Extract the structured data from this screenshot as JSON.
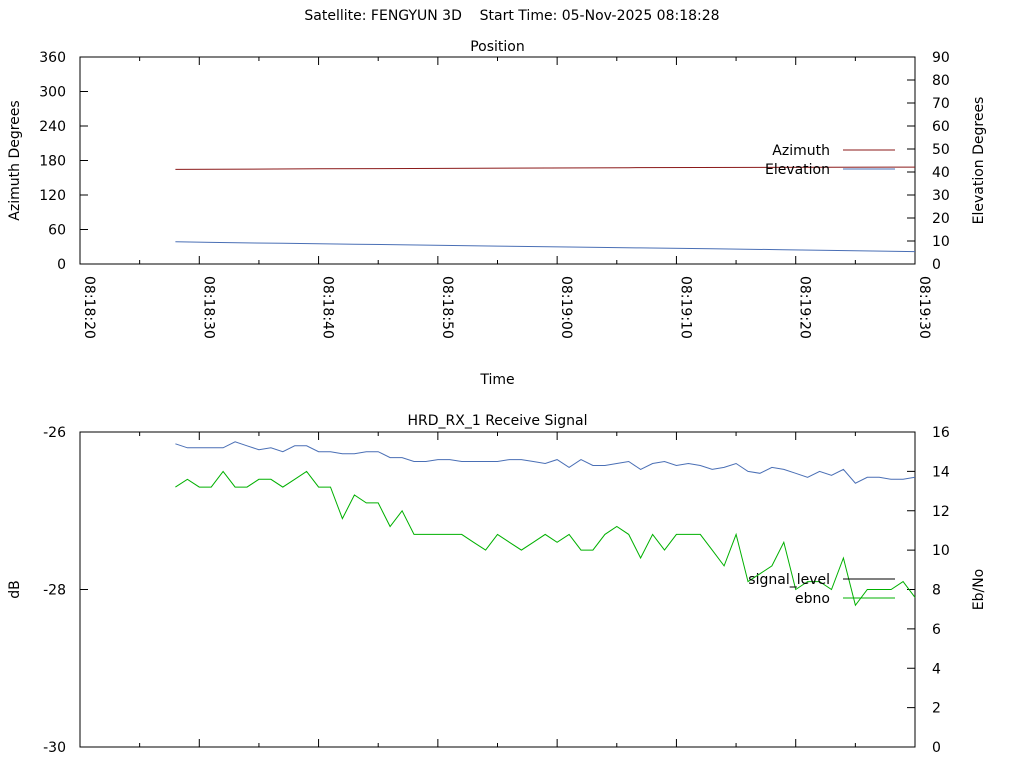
{
  "header": {
    "title": "Satellite: FENGYUN 3D    Start Time: 05-Nov-2025 08:18:28"
  },
  "chart_data": [
    {
      "type": "line",
      "title": "Position",
      "xlabel": "Time",
      "ylabel": "Azimuth Degrees",
      "y2label": "Elevation Degrees",
      "xlim": [
        "08:18:20",
        "08:19:30"
      ],
      "ylim": [
        0,
        360
      ],
      "y2lim": [
        0,
        90
      ],
      "x_ticks": [
        "08:18:20",
        "08:18:30",
        "08:18:40",
        "08:18:50",
        "08:19:00",
        "08:19:10",
        "08:19:20",
        "08:19:30"
      ],
      "y_ticks": [
        0,
        60,
        120,
        180,
        240,
        300,
        360
      ],
      "y2_ticks": [
        0,
        10,
        20,
        30,
        40,
        50,
        60,
        70,
        80,
        90
      ],
      "legend_position": "right",
      "grid": false,
      "series": [
        {
          "name": "Azimuth",
          "axis": "y",
          "color": "#8b1a1a",
          "x": [
            "08:18:28",
            "08:18:40",
            "08:19:06",
            "08:19:30"
          ],
          "y": [
            164.5,
            165.5,
            167.5,
            168.5
          ]
        },
        {
          "name": "Elevation",
          "axis": "y2",
          "color": "#4a6fb5",
          "x": [
            "08:18:28",
            "08:18:31",
            "08:18:37",
            "08:18:43",
            "08:18:49",
            "08:18:55",
            "08:19:01",
            "08:19:07",
            "08:19:13",
            "08:19:19",
            "08:19:25",
            "08:19:30"
          ],
          "y": [
            9.7,
            9.4,
            9.0,
            8.6,
            8.2,
            7.8,
            7.4,
            7.0,
            6.6,
            6.2,
            5.8,
            5.4
          ]
        }
      ]
    },
    {
      "type": "line",
      "title": "HRD_RX_1 Receive Signal",
      "xlabel": "",
      "ylabel": "dB",
      "y2label": "Eb/No",
      "xlim": [
        "08:18:20",
        "08:19:30"
      ],
      "ylim": [
        -30,
        -26
      ],
      "y2lim": [
        0,
        16
      ],
      "y_ticks": [
        -30,
        -28,
        -26
      ],
      "y2_ticks": [
        0,
        2,
        4,
        6,
        8,
        10,
        12,
        14,
        16
      ],
      "legend_position": "right",
      "grid": false,
      "series": [
        {
          "name": "signal_level",
          "axis": "y",
          "color": "#000000",
          "x": [],
          "y": []
        },
        {
          "name": "ebno",
          "axis": "y2",
          "color": "#00b000",
          "x": [
            "08:18:28",
            "08:18:29",
            "08:18:30",
            "08:18:31",
            "08:18:32",
            "08:18:33",
            "08:18:34",
            "08:18:35",
            "08:18:36",
            "08:18:37",
            "08:18:38",
            "08:18:39",
            "08:18:40",
            "08:18:41",
            "08:18:42",
            "08:18:43",
            "08:18:44",
            "08:18:45",
            "08:18:46",
            "08:18:47",
            "08:18:48",
            "08:18:49",
            "08:18:50",
            "08:18:51",
            "08:18:52",
            "08:18:53",
            "08:18:54",
            "08:18:55",
            "08:18:56",
            "08:18:57",
            "08:18:58",
            "08:18:59",
            "08:19:00",
            "08:19:01",
            "08:19:02",
            "08:19:03",
            "08:19:04",
            "08:19:05",
            "08:19:06",
            "08:19:07",
            "08:19:08",
            "08:19:09",
            "08:19:10",
            "08:19:11",
            "08:19:12",
            "08:19:13",
            "08:19:14",
            "08:19:15",
            "08:19:16",
            "08:19:17",
            "08:19:18",
            "08:19:19",
            "08:19:20",
            "08:19:21",
            "08:19:22",
            "08:19:23",
            "08:19:24",
            "08:19:25",
            "08:19:26",
            "08:19:27",
            "08:19:28",
            "08:19:29",
            "08:19:30"
          ],
          "y": [
            13.2,
            13.6,
            13.2,
            13.2,
            14.0,
            13.2,
            13.2,
            13.6,
            13.6,
            13.2,
            13.6,
            14.0,
            13.2,
            13.2,
            11.6,
            12.8,
            12.4,
            12.4,
            11.2,
            12.0,
            10.8,
            10.8,
            10.8,
            10.8,
            10.8,
            10.4,
            10.0,
            10.8,
            10.4,
            10.0,
            10.4,
            10.8,
            10.4,
            10.8,
            10.0,
            10.0,
            10.8,
            11.2,
            10.8,
            9.6,
            10.8,
            10.0,
            10.8,
            10.8,
            10.8,
            10.0,
            9.2,
            10.8,
            8.4,
            8.8,
            9.2,
            10.4,
            8.0,
            8.4,
            8.4,
            8.0,
            9.6,
            7.2,
            8.0,
            8.0,
            8.0,
            8.4,
            7.6
          ]
        },
        {
          "name": "",
          "axis": "y2",
          "color": "#4a6fb5",
          "x": [
            "08:18:28",
            "08:18:29",
            "08:18:30",
            "08:18:31",
            "08:18:32",
            "08:18:33",
            "08:18:34",
            "08:18:35",
            "08:18:36",
            "08:18:37",
            "08:18:38",
            "08:18:39",
            "08:18:40",
            "08:18:41",
            "08:18:42",
            "08:18:43",
            "08:18:44",
            "08:18:45",
            "08:18:46",
            "08:18:47",
            "08:18:48",
            "08:18:49",
            "08:18:50",
            "08:18:51",
            "08:18:52",
            "08:18:53",
            "08:18:54",
            "08:18:55",
            "08:18:56",
            "08:18:57",
            "08:18:58",
            "08:18:59",
            "08:19:00",
            "08:19:01",
            "08:19:02",
            "08:19:03",
            "08:19:04",
            "08:19:05",
            "08:19:06",
            "08:19:07",
            "08:19:08",
            "08:19:09",
            "08:19:10",
            "08:19:11",
            "08:19:12",
            "08:19:13",
            "08:19:14",
            "08:19:15",
            "08:19:16",
            "08:19:17",
            "08:19:18",
            "08:19:19",
            "08:19:20",
            "08:19:21",
            "08:19:22",
            "08:19:23",
            "08:19:24",
            "08:19:25",
            "08:19:26",
            "08:19:27",
            "08:19:28",
            "08:19:29",
            "08:19:30"
          ],
          "y": [
            15.4,
            15.2,
            15.2,
            15.2,
            15.2,
            15.5,
            15.3,
            15.1,
            15.2,
            15.0,
            15.3,
            15.3,
            15.0,
            15.0,
            14.9,
            14.9,
            15.0,
            15.0,
            14.7,
            14.7,
            14.5,
            14.5,
            14.6,
            14.6,
            14.5,
            14.5,
            14.5,
            14.5,
            14.6,
            14.6,
            14.5,
            14.4,
            14.6,
            14.2,
            14.6,
            14.3,
            14.3,
            14.4,
            14.5,
            14.1,
            14.4,
            14.5,
            14.3,
            14.4,
            14.3,
            14.1,
            14.2,
            14.4,
            14.0,
            13.9,
            14.2,
            14.1,
            13.9,
            13.7,
            14.0,
            13.8,
            14.1,
            13.4,
            13.7,
            13.7,
            13.6,
            13.6,
            13.7
          ]
        }
      ]
    }
  ]
}
